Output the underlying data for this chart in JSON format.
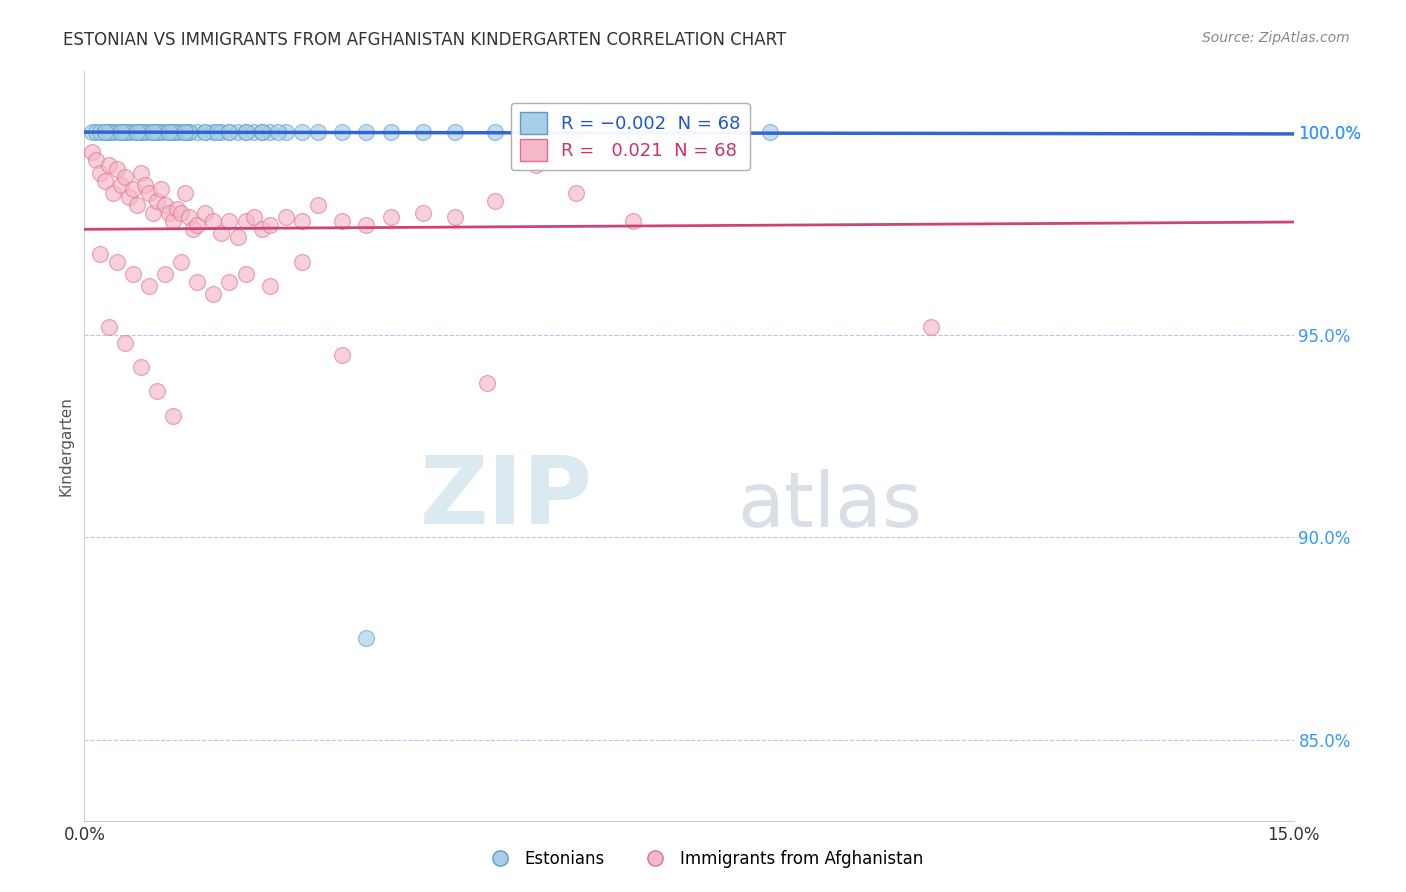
{
  "title": "ESTONIAN VS IMMIGRANTS FROM AFGHANISTAN KINDERGARTEN CORRELATION CHART",
  "source": "Source: ZipAtlas.com",
  "ylabel": "Kindergarten",
  "xlim": [
    0.0,
    15.0
  ],
  "ylim": [
    83.0,
    101.5
  ],
  "yticks": [
    85.0,
    90.0,
    95.0,
    100.0
  ],
  "ytick_labels": [
    "85.0%",
    "90.0%",
    "95.0%",
    "100.0%"
  ],
  "blue_R": -0.002,
  "blue_N": 68,
  "pink_R": 0.021,
  "pink_N": 68,
  "blue_color": "#a8cfe8",
  "pink_color": "#f4b8c8",
  "blue_edge_color": "#5b9bc8",
  "pink_edge_color": "#e07090",
  "blue_line_color": "#3366cc",
  "pink_line_color": "#cc4477",
  "blue_legend_label": "Estonians",
  "pink_legend_label": "Immigrants from Afghanistan",
  "watermark_zip": "ZIP",
  "watermark_atlas": "atlas",
  "blue_scatter_x": [
    0.1,
    0.15,
    0.2,
    0.25,
    0.3,
    0.35,
    0.4,
    0.45,
    0.5,
    0.55,
    0.6,
    0.65,
    0.7,
    0.75,
    0.8,
    0.85,
    0.9,
    0.95,
    1.0,
    1.05,
    1.1,
    1.15,
    1.2,
    1.25,
    1.3,
    1.4,
    1.5,
    1.6,
    1.7,
    1.8,
    1.9,
    2.0,
    2.1,
    2.2,
    2.3,
    2.5,
    2.7,
    2.9,
    3.2,
    3.5,
    3.8,
    4.2,
    4.6,
    5.1,
    5.6,
    6.1,
    6.8,
    7.5,
    0.3,
    0.5,
    0.7,
    0.9,
    1.1,
    1.3,
    1.5,
    1.65,
    1.8,
    2.0,
    2.2,
    2.4,
    0.25,
    0.45,
    0.65,
    0.85,
    1.05,
    1.25,
    3.5,
    8.5
  ],
  "blue_scatter_y": [
    100.0,
    100.0,
    100.0,
    100.0,
    100.0,
    100.0,
    100.0,
    100.0,
    100.0,
    100.0,
    100.0,
    100.0,
    100.0,
    100.0,
    100.0,
    100.0,
    100.0,
    100.0,
    100.0,
    100.0,
    100.0,
    100.0,
    100.0,
    100.0,
    100.0,
    100.0,
    100.0,
    100.0,
    100.0,
    100.0,
    100.0,
    100.0,
    100.0,
    100.0,
    100.0,
    100.0,
    100.0,
    100.0,
    100.0,
    100.0,
    100.0,
    100.0,
    100.0,
    100.0,
    100.0,
    100.0,
    100.0,
    100.0,
    100.0,
    100.0,
    100.0,
    100.0,
    100.0,
    100.0,
    100.0,
    100.0,
    100.0,
    100.0,
    100.0,
    100.0,
    100.0,
    100.0,
    100.0,
    100.0,
    100.0,
    100.0,
    87.5,
    100.0
  ],
  "pink_scatter_x": [
    0.1,
    0.15,
    0.2,
    0.25,
    0.3,
    0.35,
    0.4,
    0.45,
    0.5,
    0.55,
    0.6,
    0.65,
    0.7,
    0.75,
    0.8,
    0.85,
    0.9,
    0.95,
    1.0,
    1.05,
    1.1,
    1.15,
    1.2,
    1.25,
    1.3,
    1.35,
    1.4,
    1.5,
    1.6,
    1.7,
    1.8,
    1.9,
    2.0,
    2.1,
    2.2,
    2.3,
    2.5,
    2.7,
    2.9,
    3.2,
    3.5,
    3.8,
    4.2,
    4.6,
    5.1,
    5.6,
    6.1,
    6.8,
    0.2,
    0.4,
    0.6,
    0.8,
    1.0,
    1.2,
    1.4,
    1.6,
    1.8,
    2.0,
    2.3,
    2.7,
    0.3,
    0.5,
    0.7,
    0.9,
    1.1,
    3.2,
    5.0,
    10.5
  ],
  "pink_scatter_y": [
    99.5,
    99.3,
    99.0,
    98.8,
    99.2,
    98.5,
    99.1,
    98.7,
    98.9,
    98.4,
    98.6,
    98.2,
    99.0,
    98.7,
    98.5,
    98.0,
    98.3,
    98.6,
    98.2,
    98.0,
    97.8,
    98.1,
    98.0,
    98.5,
    97.9,
    97.6,
    97.7,
    98.0,
    97.8,
    97.5,
    97.8,
    97.4,
    97.8,
    97.9,
    97.6,
    97.7,
    97.9,
    97.8,
    98.2,
    97.8,
    97.7,
    97.9,
    98.0,
    97.9,
    98.3,
    99.2,
    98.5,
    97.8,
    97.0,
    96.8,
    96.5,
    96.2,
    96.5,
    96.8,
    96.3,
    96.0,
    96.3,
    96.5,
    96.2,
    96.8,
    95.2,
    94.8,
    94.2,
    93.6,
    93.0,
    94.5,
    93.8,
    95.2
  ]
}
